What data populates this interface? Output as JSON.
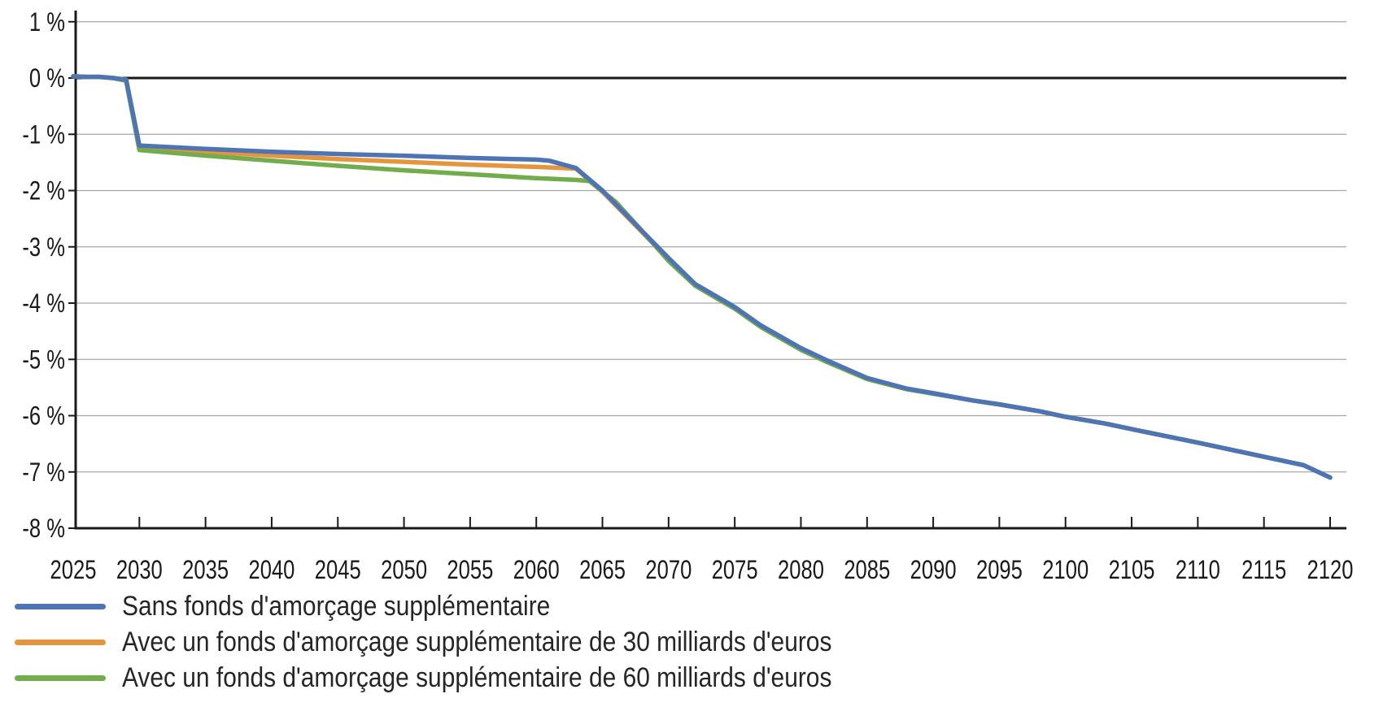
{
  "chart_data": {
    "type": "line",
    "title": "",
    "xlabel": "",
    "ylabel": "",
    "xlim": [
      2025,
      2120
    ],
    "ylim": [
      -8,
      1
    ],
    "grid": "horizontal",
    "zero_line": true,
    "legend_position": "below-left",
    "axis_color": "#1a1a1a",
    "grid_color": "#a6a6a6",
    "xticks": [
      2025,
      2030,
      2035,
      2040,
      2045,
      2050,
      2055,
      2060,
      2065,
      2070,
      2075,
      2080,
      2085,
      2090,
      2095,
      2100,
      2105,
      2110,
      2115,
      2120
    ],
    "xticklabels": [
      "2025",
      "2030",
      "2035",
      "2040",
      "2045",
      "2050",
      "2055",
      "2060",
      "2065",
      "2070",
      "2075",
      "2080",
      "2085",
      "2090",
      "2095",
      "2100",
      "2105",
      "2110",
      "2115",
      "2120"
    ],
    "yticks": [
      1,
      0,
      -1,
      -2,
      -3,
      -4,
      -5,
      -6,
      -7,
      -8
    ],
    "yticklabels": [
      "1 %",
      "0 %",
      "-1 %",
      "-2 %",
      "-3 %",
      "-4 %",
      "-5 %",
      "-6 %",
      "-7 %",
      "-8 %"
    ],
    "draw_order": [
      1,
      2,
      0
    ],
    "series": [
      {
        "key": "sans-fonds",
        "name": "Sans fonds d'amorçage supplémentaire",
        "color": "#4e74b4",
        "points": [
          [
            2025,
            0.03
          ],
          [
            2026,
            0.02
          ],
          [
            2027,
            0.02
          ],
          [
            2028,
            0.0
          ],
          [
            2029,
            -0.03
          ],
          [
            2030,
            -1.2
          ],
          [
            2035,
            -1.26
          ],
          [
            2040,
            -1.31
          ],
          [
            2045,
            -1.35
          ],
          [
            2050,
            -1.38
          ],
          [
            2055,
            -1.42
          ],
          [
            2060,
            -1.45
          ],
          [
            2061,
            -1.47
          ],
          [
            2063,
            -1.6
          ],
          [
            2065,
            -2.0
          ],
          [
            2067,
            -2.48
          ],
          [
            2070,
            -3.2
          ],
          [
            2072,
            -3.66
          ],
          [
            2075,
            -4.07
          ],
          [
            2077,
            -4.4
          ],
          [
            2080,
            -4.8
          ],
          [
            2082,
            -5.02
          ],
          [
            2085,
            -5.33
          ],
          [
            2088,
            -5.52
          ],
          [
            2090,
            -5.6
          ],
          [
            2093,
            -5.73
          ],
          [
            2095,
            -5.8
          ],
          [
            2098,
            -5.92
          ],
          [
            2100,
            -6.02
          ],
          [
            2103,
            -6.14
          ],
          [
            2105,
            -6.24
          ],
          [
            2110,
            -6.48
          ],
          [
            2115,
            -6.73
          ],
          [
            2118,
            -6.88
          ],
          [
            2120,
            -7.1
          ]
        ]
      },
      {
        "key": "fonds-30",
        "name": "Avec un fonds d'amorçage supplémentaire de 30 milliards d'euros",
        "color": "#e6953f",
        "points": [
          [
            2025,
            0.03
          ],
          [
            2026,
            0.02
          ],
          [
            2027,
            0.02
          ],
          [
            2028,
            0.0
          ],
          [
            2029,
            -0.03
          ],
          [
            2030,
            -1.24
          ],
          [
            2035,
            -1.31
          ],
          [
            2040,
            -1.38
          ],
          [
            2045,
            -1.44
          ],
          [
            2050,
            -1.49
          ],
          [
            2055,
            -1.54
          ],
          [
            2060,
            -1.58
          ],
          [
            2062,
            -1.6
          ],
          [
            2063,
            -1.61
          ],
          [
            2065,
            -2.02
          ],
          [
            2067,
            -2.5
          ],
          [
            2070,
            -3.22
          ],
          [
            2072,
            -3.67
          ],
          [
            2075,
            -4.08
          ],
          [
            2077,
            -4.41
          ],
          [
            2080,
            -4.81
          ],
          [
            2082,
            -5.03
          ],
          [
            2085,
            -5.33
          ],
          [
            2088,
            -5.52
          ],
          [
            2090,
            -5.6
          ],
          [
            2093,
            -5.73
          ],
          [
            2095,
            -5.8
          ],
          [
            2098,
            -5.92
          ],
          [
            2100,
            -6.02
          ],
          [
            2103,
            -6.14
          ],
          [
            2105,
            -6.24
          ],
          [
            2110,
            -6.48
          ],
          [
            2115,
            -6.73
          ],
          [
            2118,
            -6.88
          ],
          [
            2120,
            -7.1
          ]
        ]
      },
      {
        "key": "fonds-60",
        "name": "Avec un fonds d'amorçage supplémentaire de 60 milliards d'euros",
        "color": "#72ac4c",
        "points": [
          [
            2025,
            0.03
          ],
          [
            2026,
            0.02
          ],
          [
            2027,
            0.02
          ],
          [
            2028,
            0.0
          ],
          [
            2029,
            -0.05
          ],
          [
            2030,
            -1.28
          ],
          [
            2035,
            -1.38
          ],
          [
            2040,
            -1.47
          ],
          [
            2045,
            -1.56
          ],
          [
            2050,
            -1.64
          ],
          [
            2055,
            -1.71
          ],
          [
            2060,
            -1.78
          ],
          [
            2063,
            -1.81
          ],
          [
            2064,
            -1.83
          ],
          [
            2066,
            -2.2
          ],
          [
            2068,
            -2.72
          ],
          [
            2070,
            -3.25
          ],
          [
            2072,
            -3.69
          ],
          [
            2075,
            -4.1
          ],
          [
            2077,
            -4.43
          ],
          [
            2080,
            -4.83
          ],
          [
            2082,
            -5.05
          ],
          [
            2085,
            -5.35
          ],
          [
            2088,
            -5.53
          ],
          [
            2090,
            -5.61
          ],
          [
            2093,
            -5.73
          ],
          [
            2095,
            -5.8
          ],
          [
            2098,
            -5.92
          ],
          [
            2100,
            -6.02
          ],
          [
            2103,
            -6.14
          ],
          [
            2105,
            -6.24
          ],
          [
            2110,
            -6.48
          ],
          [
            2115,
            -6.73
          ],
          [
            2118,
            -6.88
          ],
          [
            2120,
            -7.1
          ]
        ]
      }
    ]
  },
  "legend": {
    "items": [
      {
        "label": "Sans fonds d'amorçage supplémentaire"
      },
      {
        "label": "Avec un fonds d'amorçage supplémentaire de 30 milliards d'euros"
      },
      {
        "label": "Avec un fonds d'amorçage supplémentaire de 60 milliards d'euros"
      }
    ]
  }
}
